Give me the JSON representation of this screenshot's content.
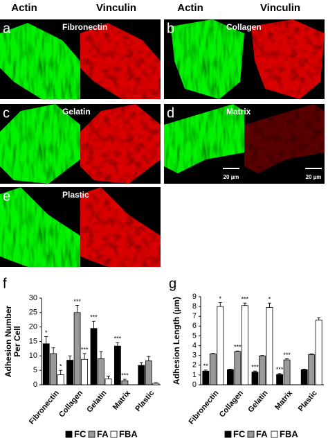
{
  "header": {
    "columns": [
      "Actin",
      "Vinculin",
      "Actin",
      "Vinculin"
    ]
  },
  "panels": [
    {
      "letter": "a",
      "label": "Fibronectin"
    },
    {
      "letter": "b",
      "label": "Collagen"
    },
    {
      "letter": "c",
      "label": "Gelatin"
    },
    {
      "letter": "d",
      "label": "Matrix",
      "scale_bars": [
        "20 µm",
        "20 µm"
      ]
    },
    {
      "letter": "e",
      "label": "Plastic"
    }
  ],
  "chart_data": [
    {
      "type": "bar",
      "panel": "f",
      "ylabel": [
        "Adhesion Number",
        "Per Cell"
      ],
      "categories": [
        "Fibronectin",
        "Collagen",
        "Gelatin",
        "Matrix",
        "Plastic"
      ],
      "ylim": [
        0,
        30
      ],
      "yticks": [
        0,
        5,
        10,
        15,
        20,
        25,
        30
      ],
      "legend": "bottom",
      "series": [
        {
          "name": "FC",
          "color": "#000000",
          "values": [
            14.2,
            8.5,
            19.5,
            13.4,
            6.7
          ],
          "errors": [
            2.5,
            1.5,
            2.5,
            1.2,
            1.0
          ],
          "markers": [
            "*",
            null,
            "***",
            "***",
            null
          ]
        },
        {
          "name": "FA",
          "color": "#999999",
          "values": [
            10.8,
            25,
            9,
            1.4,
            8.3
          ],
          "errors": [
            2.0,
            2.5,
            2.5,
            0.5,
            1.5
          ],
          "markers": [
            null,
            "***",
            null,
            "***",
            null
          ]
        },
        {
          "name": "FBA",
          "color": "#ffffff",
          "values": [
            3.5,
            8.8,
            2.0,
            0,
            0.5
          ],
          "errors": [
            1.5,
            2.0,
            1.0,
            0,
            0.2
          ],
          "markers": [
            "*",
            "***",
            null,
            null,
            null
          ]
        }
      ]
    },
    {
      "type": "bar",
      "panel": "g",
      "ylabel": [
        "Adhesion Length (µm)"
      ],
      "categories": [
        "Fibronectin",
        "Collagen",
        "Gelatin",
        "Matrix",
        "Plastic"
      ],
      "ylim": [
        0,
        9
      ],
      "yticks": [
        0,
        1,
        2,
        3,
        4,
        5,
        6,
        7,
        8,
        9
      ],
      "legend": "bottom",
      "series": [
        {
          "name": "FC",
          "color": "#000000",
          "values": [
            1.4,
            1.55,
            1.3,
            1.05,
            1.55
          ],
          "errors": [
            0.1,
            0.05,
            0.1,
            0.1,
            0.05
          ],
          "markers": [
            "**",
            null,
            "***",
            "***",
            null
          ]
        },
        {
          "name": "FA",
          "color": "#999999",
          "values": [
            3.15,
            3.4,
            2.95,
            2.55,
            3.1
          ],
          "errors": [
            0.05,
            0.05,
            0.05,
            0.1,
            0.05
          ],
          "markers": [
            null,
            "***",
            null,
            "***",
            null
          ]
        },
        {
          "name": "FBA",
          "color": "#ffffff",
          "values": [
            8.0,
            8.1,
            7.9,
            null,
            6.6
          ],
          "errors": [
            0.4,
            0.25,
            0.45,
            null,
            0.25
          ],
          "markers": [
            "*",
            "***",
            "*",
            null,
            null
          ]
        }
      ]
    }
  ]
}
